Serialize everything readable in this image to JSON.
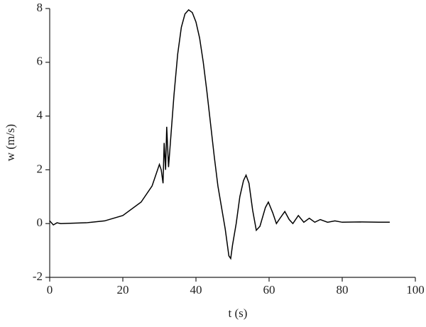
{
  "chart_data": {
    "type": "line",
    "x_label": "t (s)",
    "y_label": "w (m/s)",
    "xlim": [
      0,
      100
    ],
    "ylim": [
      -2,
      8
    ],
    "xticks": [
      0,
      20,
      40,
      60,
      80,
      100
    ],
    "yticks": [
      -2,
      0,
      2,
      4,
      6,
      8
    ],
    "series": [
      {
        "name": "w",
        "color": "#000000",
        "x": [
          0,
          1,
          2,
          3,
          5,
          10,
          15,
          20,
          25,
          28,
          30,
          30.5,
          31,
          31.3,
          31.7,
          32,
          32.5,
          33,
          34,
          35,
          36,
          37,
          38,
          39,
          40,
          41,
          42,
          43,
          44,
          45,
          46,
          47,
          48,
          49,
          49.5,
          50,
          51,
          52,
          53,
          53.7,
          54.5,
          55.5,
          56.5,
          57.5,
          59,
          59.8,
          61,
          62,
          63,
          64.3,
          65.5,
          66.5,
          68,
          69.5,
          71,
          72.5,
          74,
          76,
          78,
          80,
          85,
          90,
          93
        ],
        "values": [
          0.1,
          -0.05,
          0.03,
          0,
          0.01,
          0.03,
          0.1,
          0.3,
          0.8,
          1.4,
          2.2,
          2.0,
          1.5,
          3.0,
          2.0,
          3.6,
          2.1,
          3.0,
          4.8,
          6.3,
          7.3,
          7.8,
          7.95,
          7.85,
          7.5,
          6.9,
          6.0,
          4.9,
          3.7,
          2.5,
          1.4,
          0.6,
          -0.2,
          -1.2,
          -1.3,
          -0.8,
          0.0,
          1.0,
          1.6,
          1.8,
          1.5,
          0.5,
          -0.25,
          -0.1,
          0.6,
          0.8,
          0.4,
          0.0,
          0.2,
          0.45,
          0.15,
          0.0,
          0.3,
          0.05,
          0.2,
          0.05,
          0.15,
          0.05,
          0.1,
          0.05,
          0.06,
          0.05,
          0.05
        ]
      }
    ]
  }
}
